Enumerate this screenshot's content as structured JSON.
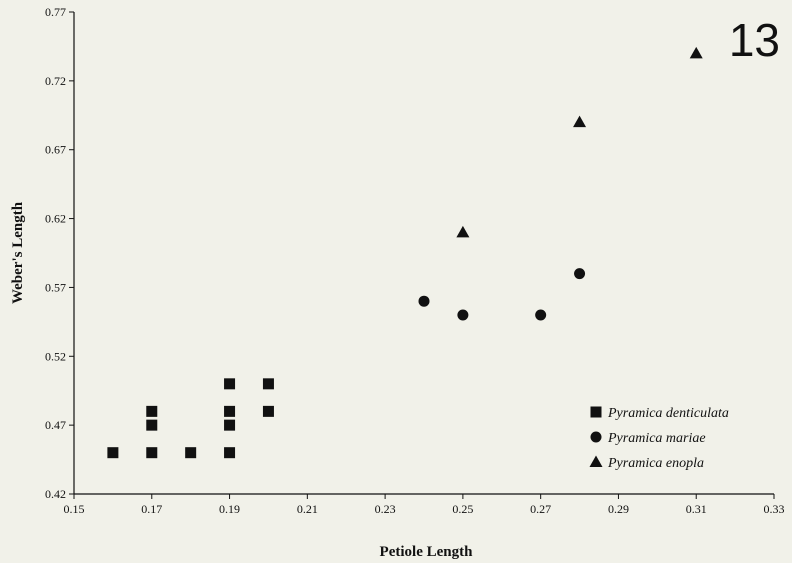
{
  "chart_data": {
    "type": "scatter",
    "title": "",
    "xlabel": "Petiole Length",
    "ylabel": "Weber's Length",
    "xlim": [
      0.15,
      0.33
    ],
    "ylim": [
      0.42,
      0.77
    ],
    "x_ticks": [
      "0.15",
      "0.17",
      "0.19",
      "0.21",
      "0.23",
      "0.25",
      "0.27",
      "0.29",
      "0.31",
      "0.33"
    ],
    "y_ticks": [
      "0.42",
      "0.47",
      "0.52",
      "0.57",
      "0.62",
      "0.67",
      "0.72",
      "0.77"
    ],
    "grid": false,
    "legend_position": "bottom-right",
    "figure_number": "13",
    "series": [
      {
        "name": "Pyramica denticulata",
        "marker": "square",
        "points": [
          [
            0.16,
            0.45
          ],
          [
            0.17,
            0.45
          ],
          [
            0.17,
            0.47
          ],
          [
            0.17,
            0.48
          ],
          [
            0.18,
            0.45
          ],
          [
            0.19,
            0.45
          ],
          [
            0.19,
            0.47
          ],
          [
            0.19,
            0.48
          ],
          [
            0.19,
            0.5
          ],
          [
            0.2,
            0.48
          ],
          [
            0.2,
            0.5
          ]
        ]
      },
      {
        "name": "Pyramica mariae",
        "marker": "circle",
        "points": [
          [
            0.24,
            0.56
          ],
          [
            0.25,
            0.55
          ],
          [
            0.27,
            0.55
          ],
          [
            0.28,
            0.58
          ]
        ]
      },
      {
        "name": "Pyramica enopla",
        "marker": "triangle",
        "points": [
          [
            0.25,
            0.61
          ],
          [
            0.28,
            0.69
          ],
          [
            0.31,
            0.74
          ]
        ]
      }
    ]
  }
}
